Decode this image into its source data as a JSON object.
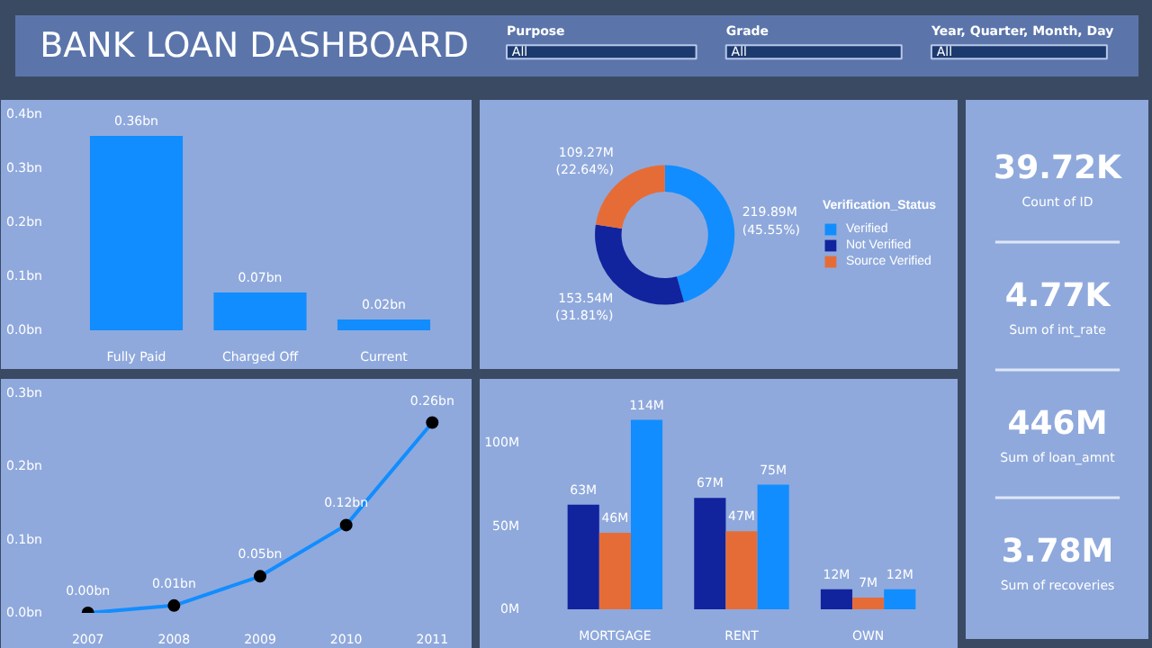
{
  "chart_data": [
    {
      "type": "other",
      "title": "BANK LOAN DASHBOARD",
      "annotations": [
        "Purpose",
        "All",
        "Grade",
        "All",
        "Year, Quarter, Month, Day",
        "All"
      ]
    },
    {
      "type": "bar",
      "categories": [
        "Fully Paid",
        "Charged Off",
        "Current"
      ],
      "values": [
        0.36,
        0.07,
        0.02
      ],
      "color": "#118dff",
      "value_labels": [
        "0.36bn",
        "0.07bn",
        "0.02bn"
      ],
      "ylim": [
        0,
        0.4
      ],
      "yticks": [
        {
          "value": 0,
          "label": "0.0bn"
        },
        {
          "value": 0.1,
          "label": "0.1bn"
        },
        {
          "value": 0.2,
          "label": "0.2bn"
        },
        {
          "value": 0.3,
          "label": "0.3bn"
        },
        {
          "value": 0.4,
          "label": "0.4bn"
        }
      ],
      "grid": false
    },
    {
      "type": "donut",
      "categories": [
        "Verified",
        "Not Verified",
        "Source Verified"
      ],
      "values": [
        45.55,
        31.81,
        22.64
      ],
      "colors": [
        "#118dff",
        "#12239e",
        "#e66c37"
      ],
      "value_labels": [
        "219.89M (45.55%)",
        "153.54M (31.81%)",
        "109.27M (22.64%)"
      ],
      "legend_title": "Verification_Status",
      "legend": "right"
    },
    {
      "type": "line",
      "categories": [
        "2007",
        "2008",
        "2009",
        "2010",
        "2011"
      ],
      "values": [
        0.0,
        0.01,
        0.05,
        0.12,
        0.26
      ],
      "color": "#118dff",
      "marker": "circle",
      "value_labels": [
        "0.00bn",
        "0.01bn",
        "0.05bn",
        "0.12bn",
        "0.26bn"
      ],
      "ylim": [
        0,
        0.3
      ],
      "yticks": [
        {
          "value": 0,
          "label": "0.0bn"
        },
        {
          "value": 0.1,
          "label": "0.1bn"
        },
        {
          "value": 0.2,
          "label": "0.2bn"
        },
        {
          "value": 0.3,
          "label": "0.3bn"
        }
      ],
      "grid": false
    },
    {
      "type": "bar",
      "categories": [
        "MORTGAGE",
        "RENT",
        "OWN"
      ],
      "series": [
        {
          "color": "#12239e",
          "values": [
            63,
            67,
            12
          ],
          "value_labels": [
            "63M",
            "67M",
            "12M"
          ]
        },
        {
          "color": "#e66c37",
          "values": [
            46,
            47,
            7
          ],
          "value_labels": [
            "46M",
            "47M",
            "7M"
          ]
        },
        {
          "color": "#118dff",
          "values": [
            114,
            75,
            12
          ],
          "value_labels": [
            "114M",
            "75M",
            "12M"
          ]
        }
      ],
      "ylim": [
        0,
        130
      ],
      "yticks": [
        {
          "value": 0,
          "label": "0M"
        },
        {
          "value": 50,
          "label": "50M"
        },
        {
          "value": 100,
          "label": "100M"
        }
      ],
      "grid": false
    },
    {
      "type": "other",
      "annotations": [
        "39.72K",
        "Count of ID",
        "4.77K",
        "Sum of int_rate",
        "446M",
        "Sum of loan_amnt",
        "3.78M",
        "Sum of recoveries"
      ]
    }
  ]
}
